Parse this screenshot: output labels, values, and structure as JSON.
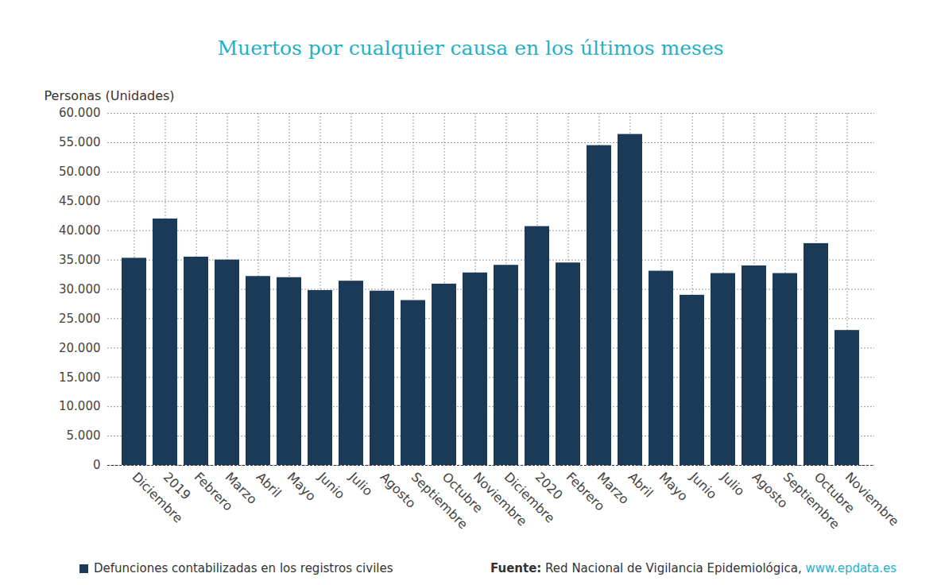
{
  "chart_data": {
    "type": "bar",
    "title": "Muertos por cualquier causa en los últimos meses",
    "y_label": "Personas (Unidades)",
    "categories": [
      "Diciembre",
      "2019",
      "Febrero",
      "Marzo",
      "Abril",
      "Mayo",
      "Junio",
      "Julio",
      "Agosto",
      "Septiembre",
      "Octubre",
      "Noviembre",
      "Diciembre",
      "2020",
      "Febrero",
      "Marzo",
      "Abril",
      "Mayo",
      "Junio",
      "Julio",
      "Agosto",
      "Septiembre",
      "Octubre",
      "Noviembre"
    ],
    "series": [
      {
        "name": "Defunciones contabilizadas en los registros civiles",
        "color": "#1b3a57",
        "values": [
          35300,
          42000,
          35500,
          35000,
          32200,
          32000,
          29800,
          31400,
          29700,
          28100,
          30900,
          32800,
          34100,
          40700,
          34500,
          54500,
          56400,
          33100,
          29000,
          32700,
          34000,
          32700,
          37800,
          23000
        ]
      }
    ],
    "ylim": [
      0,
      60000
    ],
    "yticks": [
      0,
      {
        "value": 5000,
        "label": "5.000"
      },
      {
        "value": 10000,
        "label": "10.000"
      },
      {
        "value": 15000,
        "label": "15.000"
      },
      {
        "value": 20000,
        "label": "20.000"
      },
      {
        "value": 25000,
        "label": "25.000"
      },
      {
        "value": 30000,
        "label": "30.000"
      },
      {
        "value": 35000,
        "label": "35.000"
      },
      {
        "value": 40000,
        "label": "40.000"
      },
      {
        "value": 45000,
        "label": "45.000"
      },
      {
        "value": 50000,
        "label": "50.000"
      },
      {
        "value": 55000,
        "label": "55.000"
      },
      {
        "value": 60000,
        "label": "60.000"
      }
    ],
    "grid": true,
    "source_label": "Fuente:",
    "source": "Red Nacional de Vigilancia Epidemiológica,",
    "source_url": "www.epdata.es"
  }
}
